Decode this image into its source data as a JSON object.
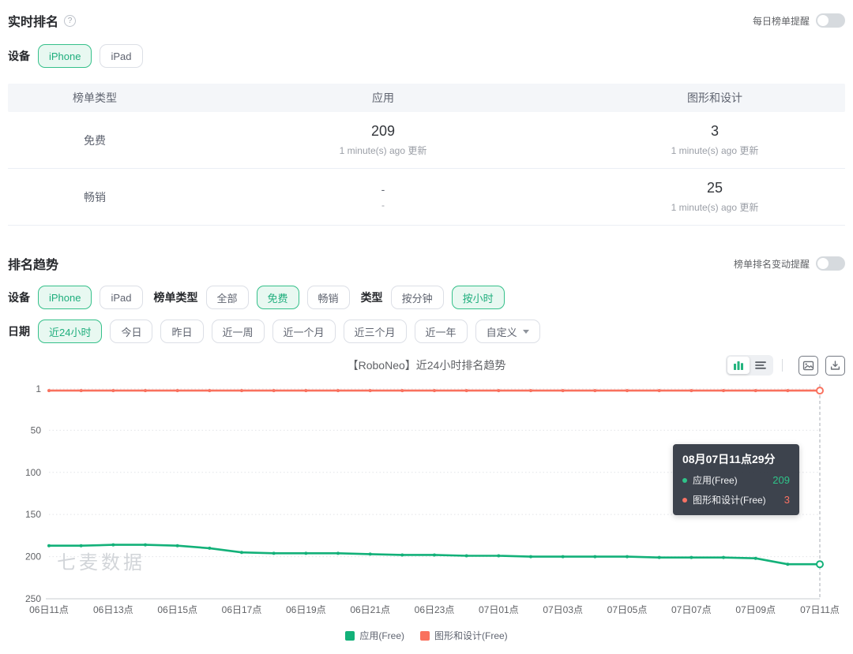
{
  "realtime": {
    "title": "实时排名",
    "daily_alert_label": "每日榜单提醒",
    "device_label": "设备",
    "devices": [
      {
        "label": "iPhone",
        "selected": true
      },
      {
        "label": "iPad",
        "selected": false
      }
    ],
    "table": {
      "headers": [
        "榜单类型",
        "应用",
        "图形和设计"
      ],
      "rows": [
        {
          "type": "免费",
          "cells": [
            {
              "value": "209",
              "sub": "1 minute(s) ago 更新"
            },
            {
              "value": "3",
              "sub": "1 minute(s) ago 更新"
            }
          ]
        },
        {
          "type": "畅销",
          "cells": [
            {
              "value": "-",
              "sub": "-"
            },
            {
              "value": "25",
              "sub": "1 minute(s) ago 更新"
            }
          ]
        }
      ]
    }
  },
  "trend": {
    "title": "排名趋势",
    "alert_label": "榜单排名变动提醒",
    "filters": [
      {
        "label": "设备",
        "options": [
          {
            "label": "iPhone",
            "selected": true
          },
          {
            "label": "iPad",
            "selected": false
          }
        ]
      },
      {
        "label": "榜单类型",
        "options": [
          {
            "label": "全部",
            "selected": false
          },
          {
            "label": "免费",
            "selected": true
          },
          {
            "label": "畅销",
            "selected": false
          }
        ]
      },
      {
        "label": "类型",
        "options": [
          {
            "label": "按分钟",
            "selected": false
          },
          {
            "label": "按小时",
            "selected": true
          }
        ]
      },
      {
        "label": "日期",
        "options": [
          {
            "label": "近24小时",
            "selected": true
          },
          {
            "label": "今日",
            "selected": false
          },
          {
            "label": "昨日",
            "selected": false
          },
          {
            "label": "近一周",
            "selected": false
          },
          {
            "label": "近一个月",
            "selected": false
          },
          {
            "label": "近三个月",
            "selected": false
          },
          {
            "label": "近一年",
            "selected": false
          },
          {
            "label": "自定义",
            "selected": false,
            "caret": true
          }
        ]
      }
    ],
    "chart_title": "【RoboNeo】近24小时排名趋势",
    "toolbar_icons": [
      "bar-chart-view-icon",
      "table-view-icon",
      "export-image-icon",
      "download-icon"
    ]
  },
  "tooltip": {
    "title": "08月07日11点29分",
    "rows": [
      {
        "label": "应用(Free)",
        "value": "209",
        "color": "#2fc389"
      },
      {
        "label": "图形和设计(Free)",
        "value": "3",
        "color": "#fa7264"
      }
    ]
  },
  "watermark": "七麦数据",
  "colors": {
    "accent_green": "#1fae7d",
    "line_green": "#13b179",
    "line_red": "#f9715e"
  },
  "chart_data": {
    "type": "line",
    "title": "【RoboNeo】近24小时排名趋势",
    "y_axis": {
      "inverted": true,
      "ticks": [
        1,
        50,
        100,
        150,
        200,
        250
      ],
      "min": 1,
      "max": 250
    },
    "x": [
      "06日11点",
      "06日12点",
      "06日13点",
      "06日14点",
      "06日15点",
      "06日16点",
      "06日17点",
      "06日18点",
      "06日19点",
      "06日20点",
      "06日21点",
      "06日22点",
      "06日23点",
      "07日00点",
      "07日01点",
      "07日02点",
      "07日03点",
      "07日04点",
      "07日05点",
      "07日06点",
      "07日07点",
      "07日08点",
      "07日09点",
      "07日10点",
      "07日11点"
    ],
    "x_tick_labels": [
      "06日11点",
      "06日13点",
      "06日15点",
      "06日17点",
      "06日19点",
      "06日21点",
      "06日23点",
      "07日01点",
      "07日03点",
      "07日05点",
      "07日07点",
      "07日09点",
      "07日11点"
    ],
    "series": [
      {
        "name": "应用(Free)",
        "color": "#13b179",
        "values": [
          187,
          187,
          186,
          186,
          187,
          190,
          195,
          196,
          196,
          196,
          197,
          198,
          198,
          199,
          199,
          200,
          200,
          200,
          200,
          201,
          201,
          201,
          202,
          209,
          209
        ]
      },
      {
        "name": "图形和设计(Free)",
        "color": "#f9715e",
        "values": [
          3,
          3,
          3,
          3,
          3,
          3,
          3,
          3,
          3,
          3,
          3,
          3,
          3,
          3,
          3,
          3,
          3,
          3,
          3,
          3,
          3,
          3,
          3,
          3,
          3
        ]
      }
    ],
    "legend": [
      "应用(Free)",
      "图形和设计(Free)"
    ],
    "legend_position": "bottom",
    "grid": "dotted-horizontal",
    "crosshair_at_x_index": 24
  }
}
